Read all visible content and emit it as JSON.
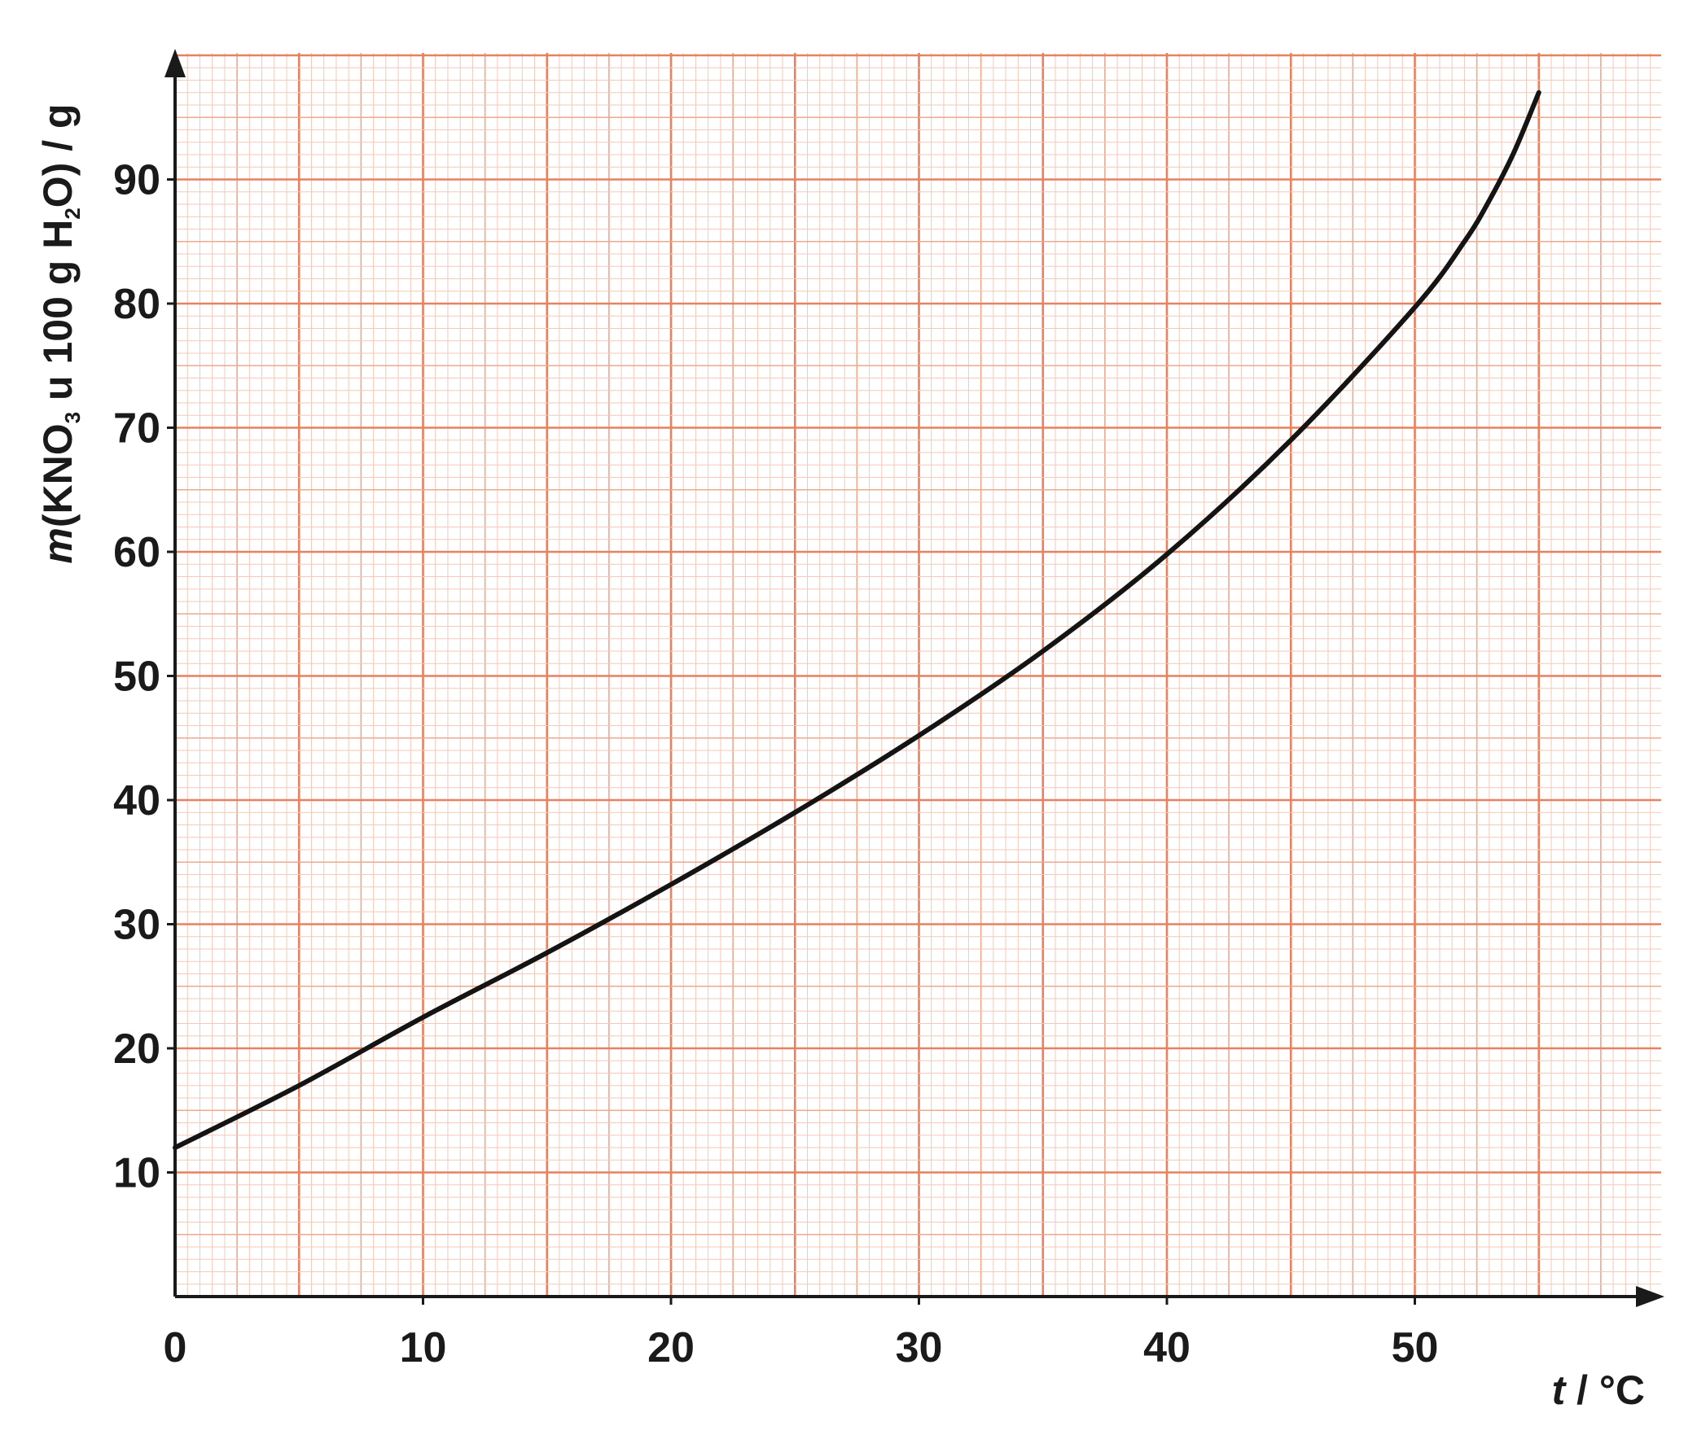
{
  "chart_data": {
    "type": "line",
    "title": "",
    "xlabel": {
      "var": "t",
      "unit_text": " / °C"
    },
    "ylabel": {
      "var": "m",
      "text1": "(KNO",
      "sub1": "3",
      "text2": " u 100 g H",
      "sub2": "2",
      "text3": "O) / g"
    },
    "xlim": [
      0,
      60
    ],
    "ylim": [
      0,
      100
    ],
    "x_ticks": [
      0,
      10,
      20,
      30,
      40,
      50
    ],
    "y_ticks": [
      10,
      20,
      30,
      40,
      50,
      60,
      70,
      80,
      90
    ],
    "grid": true,
    "colors": {
      "grid_minor": "#f3c9b8",
      "grid_mid": "#eda88e",
      "grid_major": "#e8815f",
      "curve": "#141414",
      "axis": "#1a1a1a"
    },
    "series": [
      {
        "x": [
          0,
          5,
          10,
          15,
          20,
          25,
          30,
          35,
          40,
          45,
          50,
          52,
          53,
          54,
          55
        ],
        "y": [
          12,
          17,
          22.5,
          27.7,
          33.2,
          39,
          45.2,
          52,
          59.8,
          69,
          79.7,
          85,
          88.3,
          92.2,
          97
        ]
      }
    ]
  }
}
